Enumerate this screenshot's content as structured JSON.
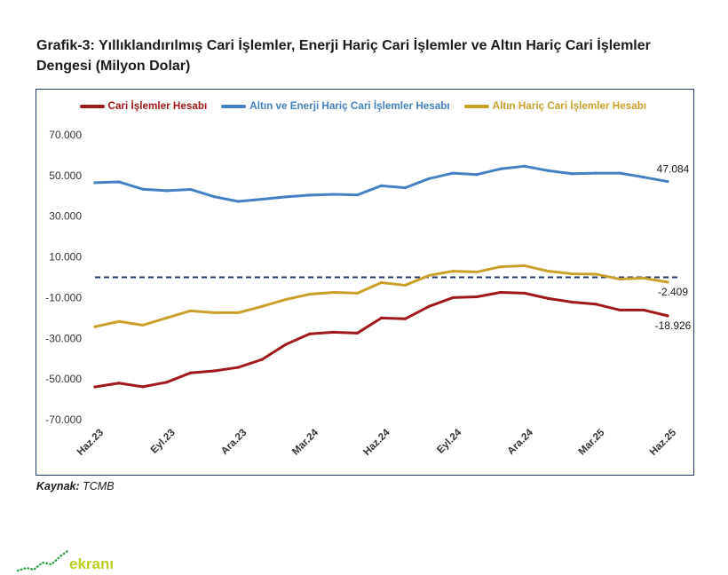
{
  "chart_data": {
    "type": "line",
    "title": "Grafik-3: Yıllıklandırılmış Cari İşlemler, Enerji Hariç Cari İşlemler ve Altın Hariç Cari İşlemler Dengesi (Milyon Dolar)",
    "xlabel": "",
    "ylabel": "",
    "categories": [
      "Haz.23",
      "",
      "",
      "Eyl.23",
      "",
      "",
      "Ara.23",
      "",
      "",
      "Mar.24",
      "",
      "",
      "Haz.24",
      "",
      "",
      "Eyl.24",
      "",
      "",
      "Ara.24",
      "",
      "",
      "Mar.25",
      "",
      "",
      "Haz.25"
    ],
    "ylim": [
      -70000,
      70000
    ],
    "y_ticks": [
      70000,
      50000,
      30000,
      10000,
      -10000,
      -30000,
      -50000,
      -70000
    ],
    "y_tick_labels": [
      "70.000",
      "50.000",
      "30.000",
      "10.000",
      "-10.000",
      "-30.000",
      "-50.000",
      "-70.000"
    ],
    "grid": false,
    "legend": "top",
    "reference_line": {
      "y": 0
    },
    "series": [
      {
        "name": "Cari İşlemler Hesabı",
        "color": "#a0181c",
        "values": [
          -53900,
          -52000,
          -53800,
          -51600,
          -47000,
          -46000,
          -44300,
          -40400,
          -33000,
          -27800,
          -27000,
          -27400,
          -20000,
          -20400,
          -14300,
          -10000,
          -9600,
          -7400,
          -7800,
          -10400,
          -12200,
          -13200,
          -16100,
          -16100,
          -18926
        ],
        "end_label": "-18.926"
      },
      {
        "name": "Altın ve Enerji Hariç Cari İşlemler Hesabı",
        "color": "#4580c2",
        "values": [
          46500,
          46900,
          43300,
          42600,
          43200,
          39600,
          37300,
          38400,
          39500,
          40400,
          40800,
          40500,
          45000,
          44000,
          48500,
          51200,
          50500,
          53300,
          54600,
          52400,
          50900,
          51200,
          51200,
          49200,
          47084
        ],
        "end_label": "47.084"
      },
      {
        "name": "Altın Hariç Cari İşlemler Hesabı",
        "color": "#c9a12a",
        "values": [
          -24300,
          -21700,
          -23500,
          -20000,
          -16500,
          -17400,
          -17400,
          -14300,
          -10900,
          -8300,
          -7400,
          -7800,
          -2600,
          -3900,
          900,
          3000,
          2600,
          5200,
          5700,
          3000,
          1700,
          1500,
          -900,
          -400,
          -2409
        ],
        "end_label": "-2.409"
      }
    ]
  },
  "source": {
    "label": "Kaynak:",
    "value": "TCMB"
  },
  "logo": {
    "text": "ekranı"
  },
  "colors": {
    "frame": "#1f3864",
    "reference_line": "#1f3864"
  }
}
